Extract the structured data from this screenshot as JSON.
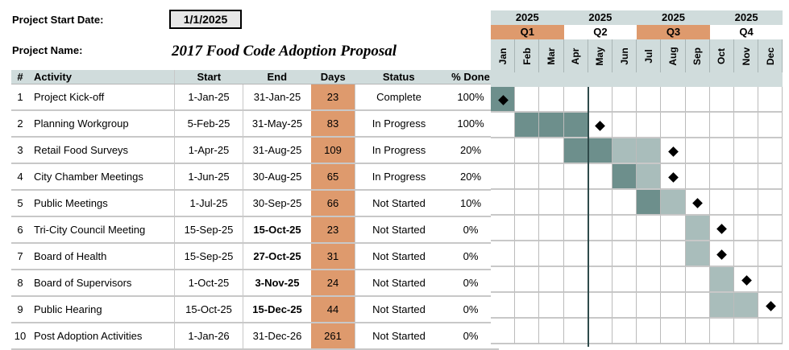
{
  "header": {
    "start_label": "Project Start Date:",
    "start_value": "1/1/2025",
    "name_label": "Project Name:",
    "name_value": "2017 Food Code Adoption Proposal"
  },
  "table": {
    "columns": [
      "#",
      "Activity",
      "Start",
      "End",
      "Days",
      "Status",
      "% Done"
    ],
    "rows": [
      {
        "num": "1",
        "activity": "Project Kick-off",
        "start": "1-Jan-25",
        "end": "31-Jan-25",
        "end_bold": false,
        "days": "23",
        "status": "Complete",
        "pct": "100%"
      },
      {
        "num": "2",
        "activity": "Planning Workgroup",
        "start": "5-Feb-25",
        "end": "31-May-25",
        "end_bold": false,
        "days": "83",
        "status": "In Progress",
        "pct": "100%"
      },
      {
        "num": "3",
        "activity": "Retail Food Surveys",
        "start": "1-Apr-25",
        "end": "31-Aug-25",
        "end_bold": false,
        "days": "109",
        "status": "In Progress",
        "pct": "20%"
      },
      {
        "num": "4",
        "activity": "City Chamber Meetings",
        "start": "1-Jun-25",
        "end": "30-Aug-25",
        "end_bold": false,
        "days": "65",
        "status": "In Progress",
        "pct": "20%"
      },
      {
        "num": "5",
        "activity": "Public Meetings",
        "start": "1-Jul-25",
        "end": "30-Sep-25",
        "end_bold": false,
        "days": "66",
        "status": "Not Started",
        "pct": "10%"
      },
      {
        "num": "6",
        "activity": "Tri-City Council Meeting",
        "start": "15-Sep-25",
        "end": "15-Oct-25",
        "end_bold": true,
        "days": "23",
        "status": "Not Started",
        "pct": "0%"
      },
      {
        "num": "7",
        "activity": "Board of Health",
        "start": "15-Sep-25",
        "end": "27-Oct-25",
        "end_bold": true,
        "days": "31",
        "status": "Not Started",
        "pct": "0%"
      },
      {
        "num": "8",
        "activity": "Board of Supervisors",
        "start": "1-Oct-25",
        "end": "3-Nov-25",
        "end_bold": true,
        "days": "24",
        "status": "Not Started",
        "pct": "0%"
      },
      {
        "num": "9",
        "activity": "Public Hearing",
        "start": "15-Oct-25",
        "end": "15-Dec-25",
        "end_bold": true,
        "days": "44",
        "status": "Not Started",
        "pct": "0%"
      },
      {
        "num": "10",
        "activity": "Post Adoption Activities",
        "start": "1-Jan-26",
        "end": "31-Dec-26",
        "end_bold": false,
        "days": "261",
        "status": "Not Started",
        "pct": "0%"
      }
    ]
  },
  "gantt": {
    "years": [
      "2025",
      "2025",
      "2025",
      "2025"
    ],
    "quarters": [
      {
        "label": "Q1",
        "color": "#de9a6d"
      },
      {
        "label": "Q2",
        "color": "#ffffff"
      },
      {
        "label": "Q3",
        "color": "#de9a6d"
      },
      {
        "label": "Q4",
        "color": "#ffffff"
      }
    ],
    "months": [
      "Jan",
      "Feb",
      "Mar",
      "Apr",
      "May",
      "Jun",
      "Jul",
      "Aug",
      "Sep",
      "Oct",
      "Nov",
      "Dec"
    ],
    "rows": [
      {
        "dark": [
          0
        ],
        "light": [],
        "diamond": 0
      },
      {
        "dark": [
          1,
          2,
          3
        ],
        "light": [],
        "diamond": 4
      },
      {
        "dark": [
          3,
          4
        ],
        "light": [
          5,
          6
        ],
        "diamond": 7
      },
      {
        "dark": [
          5
        ],
        "light": [
          6
        ],
        "diamond": 7
      },
      {
        "dark": [
          6
        ],
        "light": [
          7
        ],
        "diamond": 8
      },
      {
        "dark": [],
        "light": [
          8
        ],
        "diamond": 9
      },
      {
        "dark": [],
        "light": [
          8
        ],
        "diamond": 9
      },
      {
        "dark": [],
        "light": [
          9
        ],
        "diamond": 10
      },
      {
        "dark": [],
        "light": [
          9,
          10
        ],
        "diamond": 11
      },
      {
        "dark": [],
        "light": [],
        "diamond": null
      }
    ],
    "colors": {
      "dark": "#6d8f8c",
      "light": "#a9bdbb",
      "header": "#d0dcdc",
      "days": "#de9a6d"
    }
  }
}
